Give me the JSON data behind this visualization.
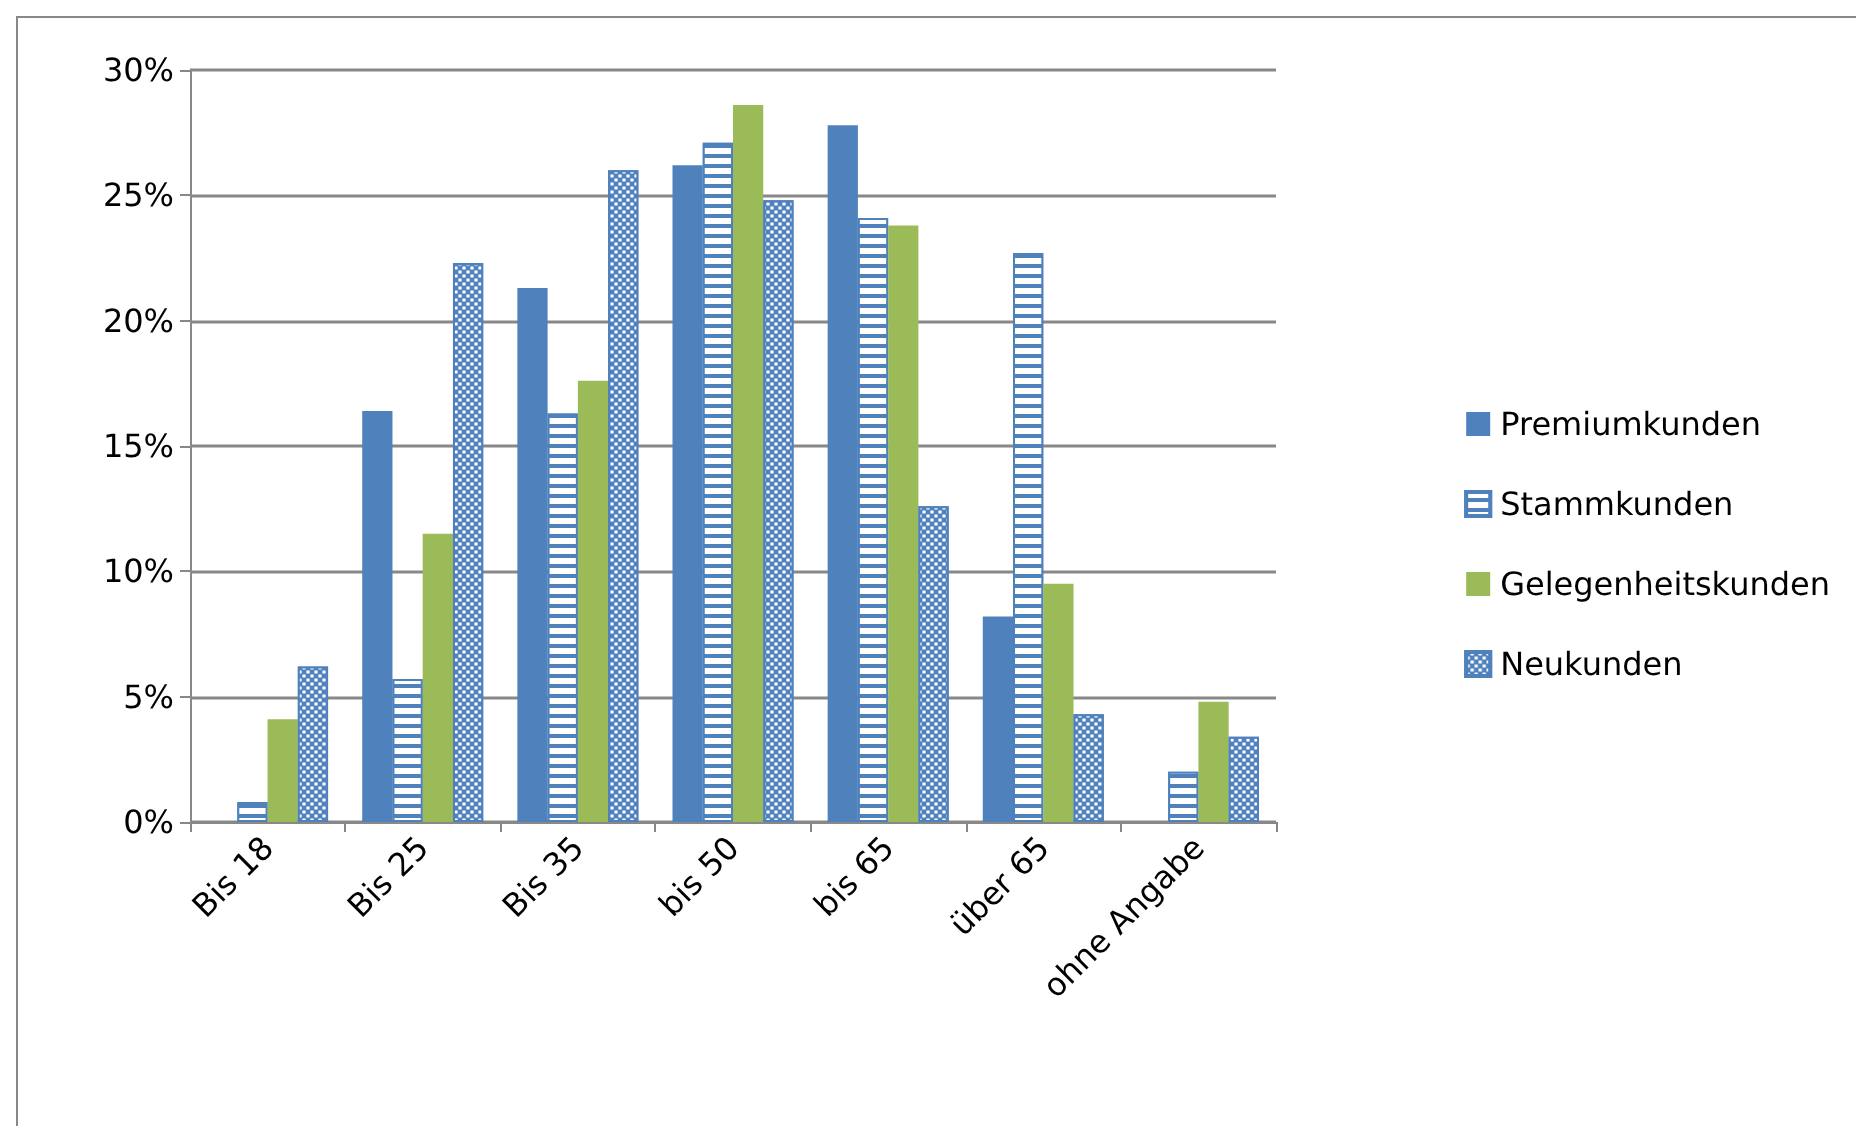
{
  "chart_data": {
    "type": "bar",
    "categories": [
      "Bis 18",
      "Bis 25",
      "Bis 35",
      "bis 50",
      "bis 65",
      "über 65",
      "ohne Angabe"
    ],
    "series": [
      {
        "name": "Premiumkunden",
        "color": "#4f81bd",
        "values": [
          0,
          16.4,
          21.3,
          26.2,
          27.8,
          8.2,
          0
        ]
      },
      {
        "name": "Stammkunden",
        "color": "#4f81bd",
        "values": [
          0.8,
          5.7,
          16.3,
          27.1,
          24.1,
          22.7,
          2.0
        ]
      },
      {
        "name": "Gelegenheitskunden",
        "color": "#9bbb59",
        "values": [
          4.1,
          11.5,
          17.6,
          28.6,
          23.8,
          9.5,
          4.8
        ]
      },
      {
        "name": "Neukunden",
        "color": "#4f81bd",
        "values": [
          6.2,
          22.3,
          26.0,
          24.8,
          12.6,
          4.3,
          3.4
        ]
      }
    ],
    "ylim": [
      0,
      30
    ],
    "yticks": [
      {
        "value": 0,
        "label": "0%"
      },
      {
        "value": 5,
        "label": "5%"
      },
      {
        "value": 10,
        "label": "10%"
      },
      {
        "value": 15,
        "label": "15%"
      },
      {
        "value": 20,
        "label": "20%"
      },
      {
        "value": 25,
        "label": "25%"
      },
      {
        "value": 30,
        "label": "30%"
      }
    ],
    "grid": "y",
    "legend": "right"
  }
}
